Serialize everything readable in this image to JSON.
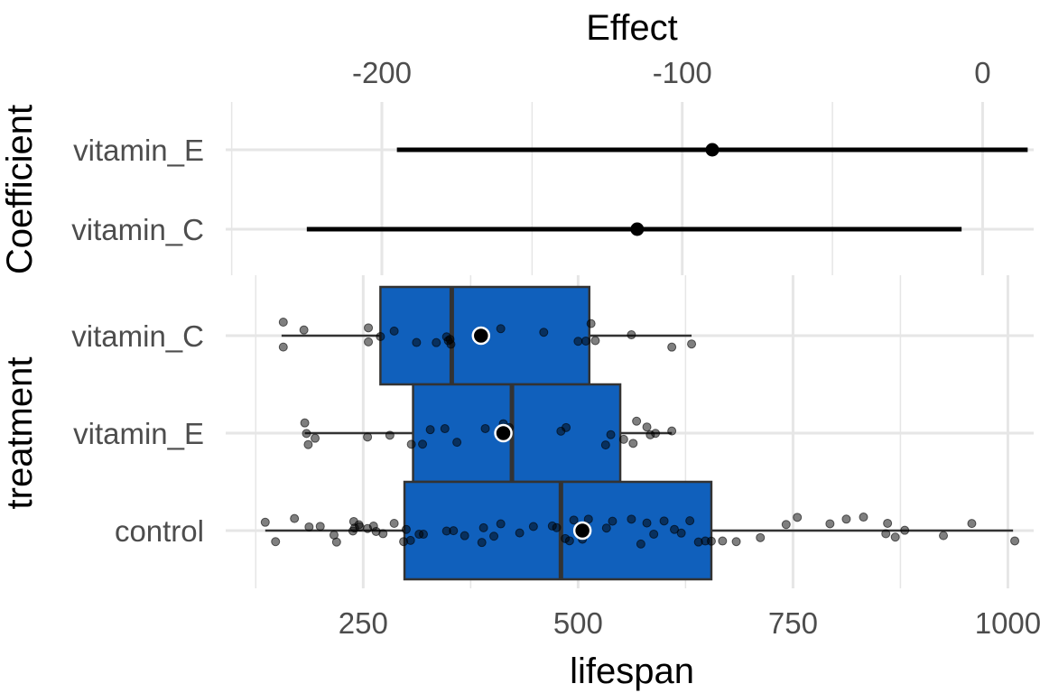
{
  "chart_data": [
    {
      "type": "forest",
      "panel": "coefficients",
      "xlabel": "Effect",
      "ylabel": "Coefficient",
      "xlim": [
        -252,
        17
      ],
      "x_ticks": [
        -200,
        -100,
        0
      ],
      "x_tick_labels": [
        "-200",
        "-100",
        "0"
      ],
      "axis_position": "top",
      "grid": true,
      "coefficients": [
        {
          "name": "vitamin_E",
          "estimate": -90,
          "lower": -195,
          "upper": 15
        },
        {
          "name": "vitamin_C",
          "estimate": -115,
          "lower": -225,
          "upper": -7
        }
      ]
    },
    {
      "type": "boxplot",
      "panel": "distribution",
      "xlabel": "lifespan",
      "ylabel": "treatment",
      "xlim": [
        90,
        1030
      ],
      "x_ticks": [
        250,
        500,
        750,
        1000
      ],
      "x_tick_labels": [
        "250",
        "500",
        "750",
        "1000"
      ],
      "grid": true,
      "box_color": "#1060BC",
      "groups": [
        {
          "name": "vitamin_C",
          "whisker_low": 155,
          "q1": 270,
          "median": 353,
          "q3": 513,
          "whisker_high": 632,
          "mean": 387,
          "points": [
            157,
            157,
            181,
            256,
            256,
            270,
            286,
            312,
            335,
            347,
            349,
            351,
            352,
            410,
            460,
            500,
            509,
            515,
            520,
            562,
            609,
            632
          ]
        },
        {
          "name": "vitamin_E",
          "whisker_low": 182,
          "q1": 308,
          "median": 423,
          "q3": 549,
          "whisker_high": 609,
          "mean": 413,
          "points": [
            182,
            184,
            186,
            194,
            255,
            281,
            306,
            319,
            328,
            345,
            359,
            392,
            413,
            420,
            480,
            486,
            532,
            538,
            553,
            564,
            568,
            580,
            584,
            590,
            609
          ]
        },
        {
          "name": "control",
          "whisker_low": 136,
          "q1": 298,
          "median": 480,
          "q3": 655,
          "whisker_high": 1006,
          "mean": 505,
          "points": [
            136,
            148,
            170,
            187,
            200,
            216,
            219,
            238,
            239,
            240,
            245,
            246,
            255,
            262,
            265,
            273,
            286,
            297,
            300,
            305,
            315,
            320,
            347,
            355,
            368,
            388,
            390,
            402,
            410,
            432,
            448,
            470,
            475,
            485,
            490,
            495,
            505,
            512,
            533,
            540,
            562,
            573,
            580,
            588,
            600,
            612,
            620,
            630,
            640,
            648,
            655,
            668,
            684,
            712,
            742,
            755,
            793,
            812,
            832,
            858,
            860,
            869,
            880,
            925,
            958,
            1008
          ]
        }
      ]
    }
  ]
}
